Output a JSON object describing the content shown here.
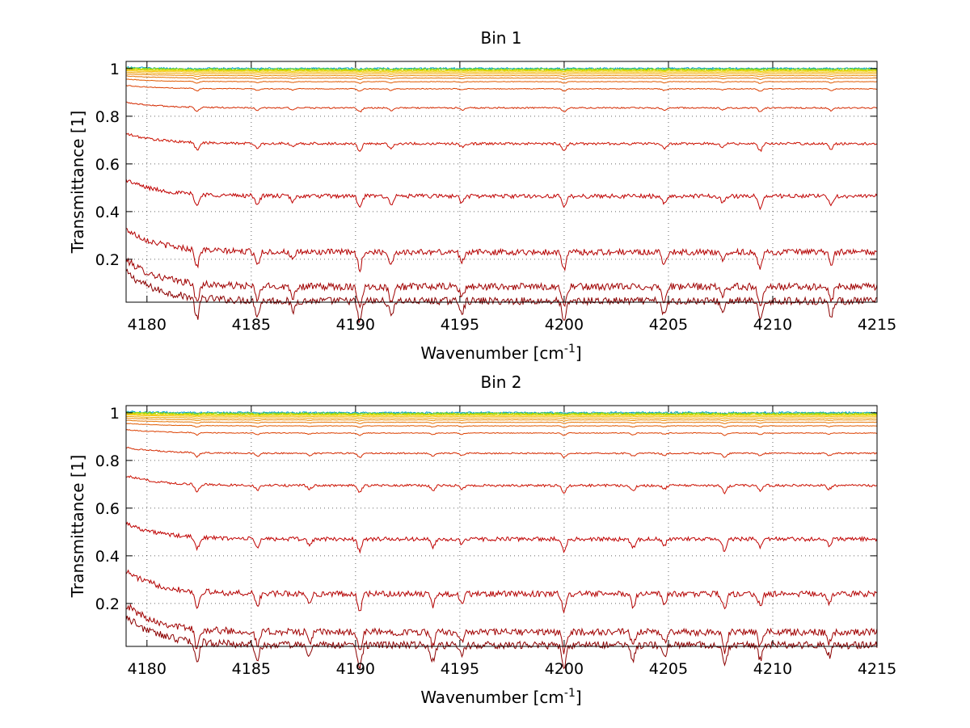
{
  "chart_data": [
    {
      "type": "line",
      "title": "Bin 1",
      "xlabel": "Wavenumber [cm",
      "xlabel_sup": "-1",
      "xlabel_tail": "]",
      "ylabel": "Transmittance [1]",
      "xlim": [
        4179,
        4215
      ],
      "ylim": [
        0.02,
        1.03
      ],
      "xticks": [
        4180,
        4185,
        4190,
        4195,
        4200,
        4205,
        4210,
        4215
      ],
      "yticks": [
        0.2,
        0.4,
        0.6,
        0.8,
        1
      ],
      "ytick_labels": [
        "0.2",
        "0.4",
        "0.6",
        "0.8",
        "1"
      ],
      "grid": true,
      "series_baselines": [
        0.025,
        0.085,
        0.23,
        0.465,
        0.685,
        0.835,
        0.915,
        0.945,
        0.96,
        0.97,
        0.978,
        0.985,
        0.99,
        0.993,
        0.996,
        0.998,
        1.0
      ],
      "absorption_lines": [
        4182.4,
        4185.3,
        4187.0,
        4190.2,
        4191.7,
        4195.1,
        4200.0,
        4204.8,
        4207.6,
        4209.4,
        4212.8
      ],
      "series_colors": [
        "#8b0000",
        "#a00000",
        "#b40000",
        "#c00000",
        "#cc1000",
        "#d42a00",
        "#dc4000",
        "#e05a00",
        "#e57300",
        "#eb8c00",
        "#f0a500",
        "#f5bd00",
        "#f0d200",
        "#c8dc00",
        "#90d800",
        "#40c080",
        "#00a0d0"
      ]
    },
    {
      "type": "line",
      "title": "Bin 2",
      "xlabel": "Wavenumber [cm",
      "xlabel_sup": "-1",
      "xlabel_tail": "]",
      "ylabel": "Transmittance [1]",
      "xlim": [
        4179,
        4215
      ],
      "ylim": [
        0.02,
        1.03
      ],
      "xticks": [
        4180,
        4185,
        4190,
        4195,
        4200,
        4205,
        4210,
        4215
      ],
      "yticks": [
        0.2,
        0.4,
        0.6,
        0.8,
        1
      ],
      "ytick_labels": [
        "0.2",
        "0.4",
        "0.6",
        "0.8",
        "1"
      ],
      "grid": true,
      "series_baselines": [
        0.025,
        0.08,
        0.24,
        0.47,
        0.695,
        0.83,
        0.915,
        0.945,
        0.96,
        0.97,
        0.978,
        0.985,
        0.99,
        0.993,
        0.996,
        0.998,
        1.0
      ],
      "absorption_lines": [
        4182.4,
        4185.3,
        4187.8,
        4190.2,
        4193.7,
        4195.1,
        4200.0,
        4203.3,
        4204.8,
        4207.7,
        4209.4,
        4212.7
      ],
      "series_colors": [
        "#8b0000",
        "#a00000",
        "#b40000",
        "#c00000",
        "#cc1000",
        "#d42a00",
        "#dc4000",
        "#e05a00",
        "#e57300",
        "#eb8c00",
        "#f0a500",
        "#f5bd00",
        "#f0d200",
        "#c8dc00",
        "#90d800",
        "#40c080",
        "#00a0d0"
      ]
    }
  ]
}
